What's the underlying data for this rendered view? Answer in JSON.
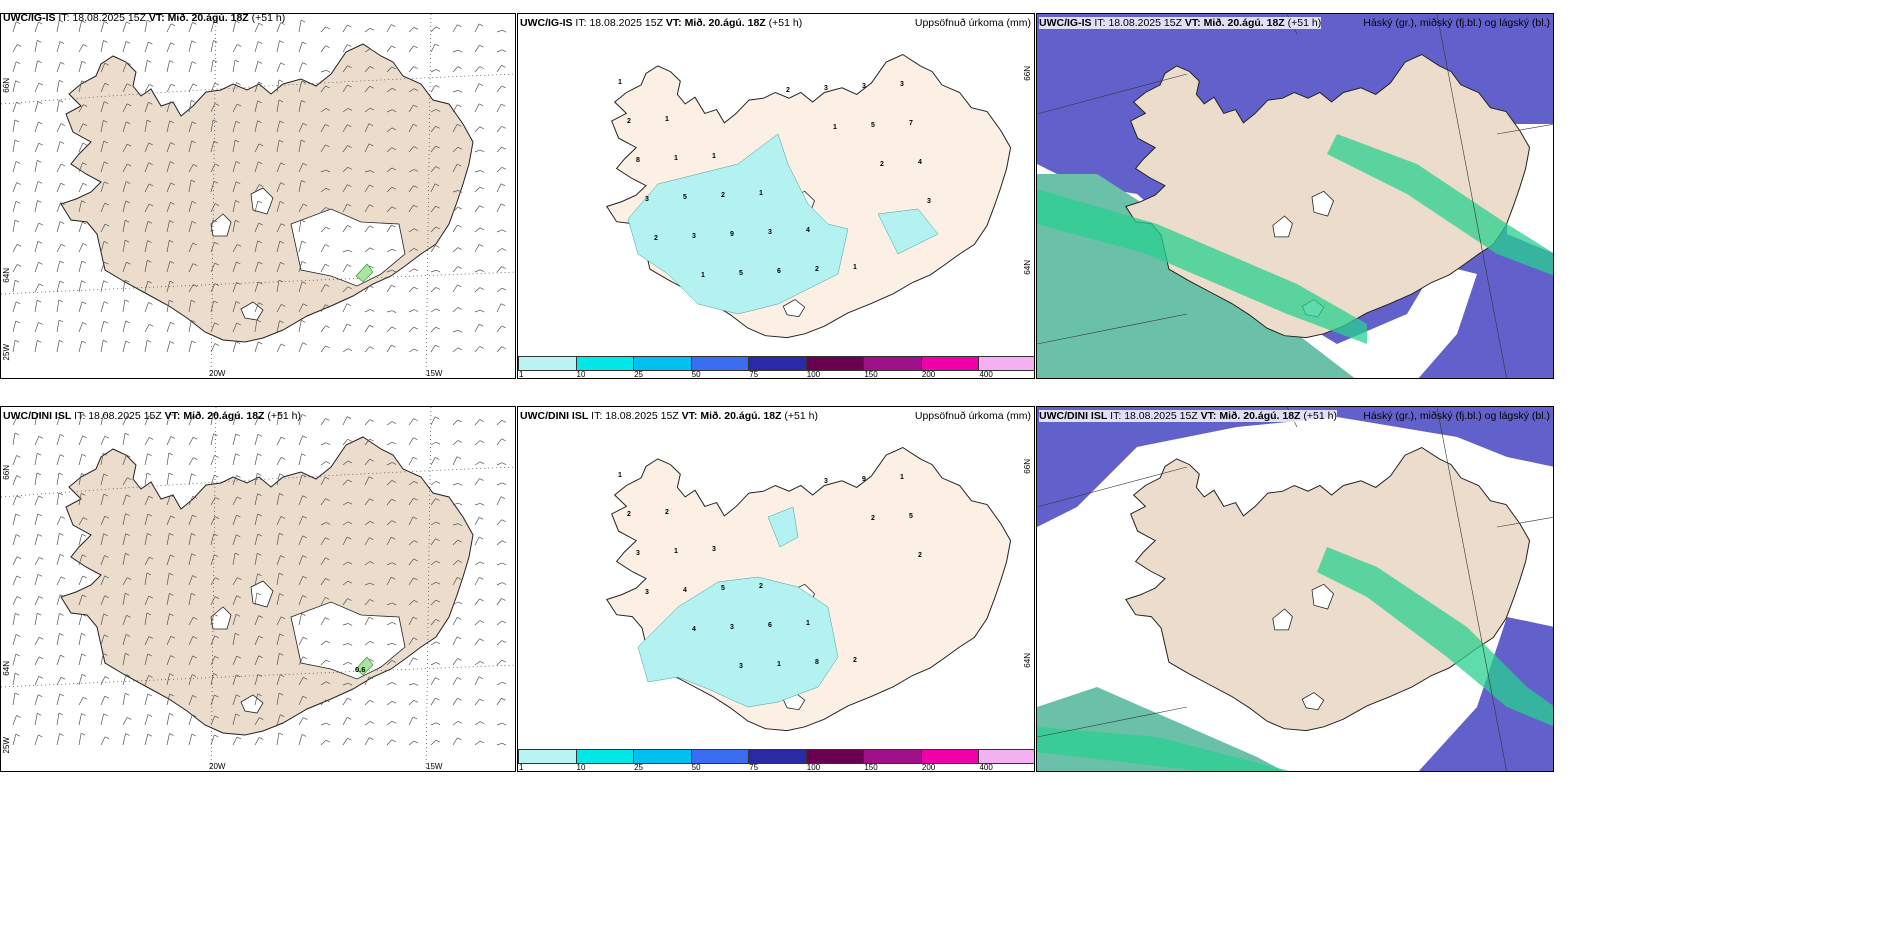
{
  "rows": [
    {
      "wind": {
        "model": "UWC/IG-IS",
        "it_label": "IT:",
        "it": "18.08.2025 15Z",
        "vt_label": "VT:",
        "vt": "Mið. 20.ágú. 18Z",
        "lead": "(+51 h)",
        "lat_top": "66N",
        "lat_mid": "64N",
        "lat_bot": "25W",
        "lon_left": "20W",
        "lon_right": "15W",
        "extra": "h)"
      },
      "precip": {
        "model": "UWC/IG-IS",
        "it_label": "IT:",
        "it": "18.08.2025 15Z",
        "vt_label": "VT:",
        "vt": "Mið. 20.ágú. 18Z",
        "lead": "(+51 h)",
        "right_label": "Uppsöfnuð úrkoma (mm)",
        "lat_top": "66N",
        "lat_mid": "64N"
      },
      "cloud": {
        "model": "UWC/IG-IS",
        "it_label": "IT:",
        "it": "18.08.2025 15Z",
        "vt_label": "VT:",
        "vt": "Mið. 20.ágú. 18Z",
        "lead": "(+51 h)",
        "right_label": "Háský (gr.), miðský (fj.bl.) og lágský (bl.)"
      }
    },
    {
      "wind": {
        "model": "UWC/DINI ISL",
        "it_label": "IT:",
        "it": "18.08.2025 15Z",
        "vt_label": "VT:",
        "vt": "Mið. 20.ágú. 18Z",
        "lead": "(+51 h)",
        "lat_top": "66N",
        "lat_mid": "64N",
        "lat_bot": "25W",
        "lon_left": "20W",
        "lon_right": "15W",
        "point_value": "0.6"
      },
      "precip": {
        "model": "UWC/DINI ISL",
        "it_label": "IT:",
        "it": "18.08.2025 15Z",
        "vt_label": "VT:",
        "vt": "Mið. 20.ágú. 18Z",
        "lead": "(+51 h)",
        "right_label": "Uppsöfnuð úrkoma (mm)",
        "lat_top": "66N",
        "lat_mid": "64N"
      },
      "cloud": {
        "model": "UWC/DINI ISL",
        "it_label": "IT:",
        "it": "18.08.2025 15Z",
        "vt_label": "VT:",
        "vt": "Mið. 20.ágú. 18Z",
        "lead": "(+51 h)",
        "right_label": "Háský (gr.), miðský (fj.bl.) og lágský (bl.)"
      }
    }
  ],
  "colorbar": {
    "ticks": [
      "1",
      "10",
      "25",
      "50",
      "75",
      "100",
      "150",
      "200",
      "400"
    ],
    "colors": [
      "#b8f4f4",
      "#00e8e8",
      "#00c0f0",
      "#3a6ef0",
      "#2a2aa8",
      "#6a0050",
      "#a0108a",
      "#f000a8",
      "#f4b0f0"
    ]
  },
  "colors": {
    "land": "#ecdccb",
    "land_precip": "#fcefe4",
    "precip_light": "#b4f2f2",
    "cloud_low": "#5a58c8",
    "cloud_mid": "#6ac0a8",
    "cloud_high": "#2ad090",
    "sea": "#ffffff"
  },
  "precip_labels": {
    "top": [
      "1",
      "1",
      "1",
      "1",
      "4",
      "1",
      "3",
      "2",
      "1",
      "2",
      "3",
      "2",
      "3",
      "7",
      "8",
      "5",
      "9",
      "6",
      "3",
      "5",
      "4",
      "3",
      "3",
      "5",
      "2",
      "1",
      "2",
      "3",
      "2",
      "1"
    ],
    "bottom": [
      "1",
      "2",
      "3",
      "2",
      "1",
      "2",
      "1",
      "2",
      "1",
      "5",
      "6",
      "8",
      "9",
      "5",
      "3",
      "4",
      "3",
      "1",
      "3",
      "2",
      "2",
      "3",
      "4",
      "3"
    ]
  }
}
